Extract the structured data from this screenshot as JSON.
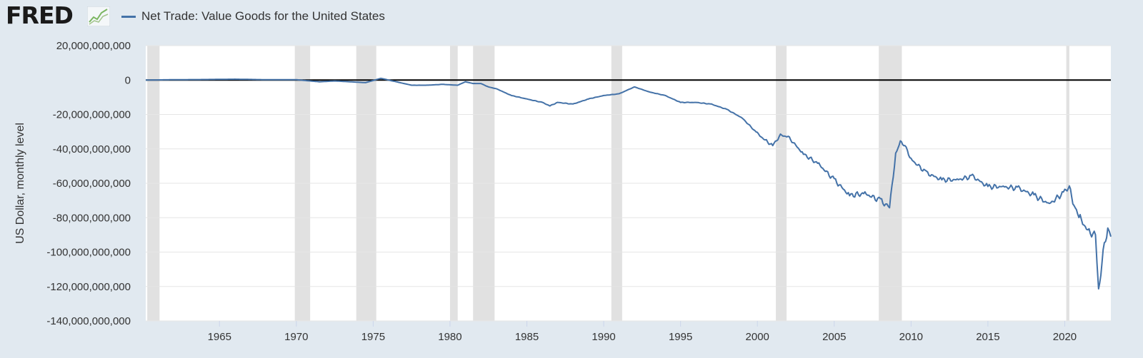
{
  "header": {
    "logo": "FRED",
    "logo_icon": "chart-line-icon",
    "legend_label": "Net Trade: Value Goods for the United States"
  },
  "colors": {
    "background": "#e1e9f0",
    "plot_background": "#ffffff",
    "series": "#4472a8",
    "recession": "#e1e1e1",
    "zero_line": "#000000"
  },
  "chart_data": {
    "type": "line",
    "title": "",
    "xlabel": "",
    "ylabel": "US Dollar, monthly level",
    "xlim": [
      1960.2,
      2023.0
    ],
    "ylim": [
      -140000000000,
      20000000000
    ],
    "x_ticks": [
      1965,
      1970,
      1975,
      1980,
      1985,
      1990,
      1995,
      2000,
      2005,
      2010,
      2015,
      2020
    ],
    "y_ticks": [
      {
        "value": 20000000000,
        "label": "20,000,000,000"
      },
      {
        "value": 0,
        "label": "0"
      },
      {
        "value": -20000000000,
        "label": "-20,000,000,000"
      },
      {
        "value": -40000000000,
        "label": "-40,000,000,000"
      },
      {
        "value": -60000000000,
        "label": "-60,000,000,000"
      },
      {
        "value": -80000000000,
        "label": "-80,000,000,000"
      },
      {
        "value": -100000000000,
        "label": "-100,000,000,000"
      },
      {
        "value": -120000000000,
        "label": "-120,000,000,000"
      },
      {
        "value": -140000000000,
        "label": "-140,000,000,000"
      }
    ],
    "grid": true,
    "legend_position": "top-left",
    "recessions": [
      [
        1960.3,
        1961.1
      ],
      [
        1969.9,
        1970.9
      ],
      [
        1973.9,
        1975.2
      ],
      [
        1980.0,
        1980.5
      ],
      [
        1981.5,
        1982.9
      ],
      [
        1990.5,
        1991.2
      ],
      [
        2001.2,
        2001.9
      ],
      [
        2007.9,
        2009.4
      ],
      [
        2020.1,
        2020.3
      ]
    ],
    "series": [
      {
        "name": "Net Trade: Value Goods for the United States",
        "x": [
          1960.2,
          1962,
          1964,
          1966,
          1968,
          1970,
          1971.5,
          1972.5,
          1973.5,
          1974.5,
          1975.5,
          1976.5,
          1977.5,
          1978.5,
          1979.5,
          1980.5,
          1981,
          1981.5,
          1982,
          1982.5,
          1983,
          1984,
          1985,
          1986,
          1986.5,
          1987,
          1988,
          1989,
          1990,
          1991,
          1992,
          1993,
          1994,
          1995,
          1996,
          1997,
          1998,
          1999,
          2000,
          2000.5,
          2001,
          2001.5,
          2002,
          2003,
          2004,
          2005,
          2006,
          2007,
          2008,
          2008.6,
          2009,
          2009.3,
          2009.6,
          2010,
          2011,
          2012,
          2013,
          2014,
          2015,
          2016,
          2017,
          2018,
          2019,
          2020,
          2020.3,
          2020.6,
          2021,
          2021.5,
          2022,
          2022.2,
          2022.5,
          2022.8,
          2023.0
        ],
        "y": [
          0,
          200000000,
          300000000,
          500000000,
          200000000,
          200000000,
          -1000000000,
          -500000000,
          -1000000000,
          -1500000000,
          1000000000,
          -1000000000,
          -3000000000,
          -3000000000,
          -2500000000,
          -3000000000,
          -1000000000,
          -2000000000,
          -2000000000,
          -4000000000,
          -5000000000,
          -9000000000,
          -11000000000,
          -13000000000,
          -15000000000,
          -13000000000,
          -14000000000,
          -11000000000,
          -9000000000,
          -8000000000,
          -4000000000,
          -7000000000,
          -9000000000,
          -13000000000,
          -13000000000,
          -14000000000,
          -17000000000,
          -22000000000,
          -31000000000,
          -35000000000,
          -38000000000,
          -32000000000,
          -33000000000,
          -43000000000,
          -49000000000,
          -58000000000,
          -67000000000,
          -66000000000,
          -70000000000,
          -74000000000,
          -43000000000,
          -36000000000,
          -38000000000,
          -46000000000,
          -54000000000,
          -58000000000,
          -58000000000,
          -56000000000,
          -62000000000,
          -62000000000,
          -63000000000,
          -67000000000,
          -72000000000,
          -65000000000,
          -62000000000,
          -73000000000,
          -80000000000,
          -88000000000,
          -90000000000,
          -124000000000,
          -100000000000,
          -86000000000,
          -91000000000
        ]
      }
    ]
  }
}
